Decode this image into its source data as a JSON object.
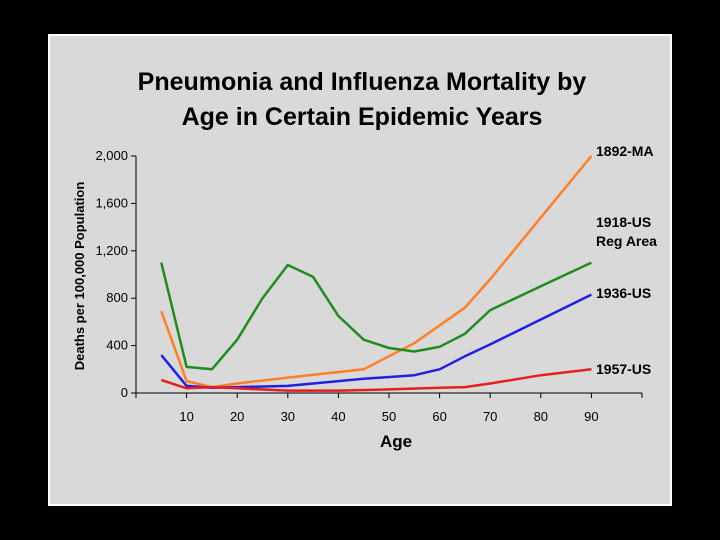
{
  "chart_data": {
    "type": "line",
    "title_lines": [
      "Pneumonia and Influenza Mortality by",
      "Age in Certain Epidemic Years"
    ],
    "xlabel": "Age",
    "ylabel": "Deaths per 100,000 Population",
    "xlim": [
      0,
      100
    ],
    "ylim": [
      0,
      2000
    ],
    "x_ticks": [
      10,
      20,
      30,
      40,
      50,
      60,
      70,
      80,
      90
    ],
    "y_ticks": [
      0,
      400,
      800,
      1200,
      1600,
      2000
    ],
    "y_tick_labels": [
      "0",
      "400",
      "800",
      "1,200",
      "1,600",
      "2,000"
    ],
    "grid": false,
    "legend": "labels beside line ends (right)",
    "series": [
      {
        "name_lines": [
          "1892-MA"
        ],
        "color": "#ff7f27",
        "x": [
          5,
          10,
          15,
          20,
          30,
          45,
          55,
          65,
          70,
          80,
          90
        ],
        "y": [
          690,
          100,
          50,
          80,
          130,
          200,
          420,
          720,
          960,
          1480,
          2000
        ]
      },
      {
        "name_lines": [
          "1918-US",
          "Reg Area"
        ],
        "color": "#1f8c1f",
        "x": [
          5,
          10,
          15,
          20,
          25,
          30,
          35,
          40,
          45,
          50,
          55,
          60,
          65,
          70,
          80,
          90
        ],
        "y": [
          1100,
          220,
          200,
          450,
          800,
          1080,
          980,
          650,
          450,
          380,
          350,
          390,
          500,
          700,
          900,
          1100
        ]
      },
      {
        "name_lines": [
          "1936-US"
        ],
        "color": "#1f1fe6",
        "x": [
          5,
          10,
          15,
          20,
          30,
          40,
          45,
          55,
          60,
          65,
          70,
          80,
          90
        ],
        "y": [
          320,
          60,
          45,
          50,
          60,
          100,
          120,
          150,
          200,
          310,
          410,
          620,
          830
        ]
      },
      {
        "name_lines": [
          "1957-US"
        ],
        "color": "#e61f1f",
        "x": [
          5,
          10,
          15,
          20,
          30,
          40,
          50,
          60,
          65,
          70,
          80,
          90
        ],
        "y": [
          110,
          40,
          50,
          40,
          20,
          20,
          30,
          45,
          50,
          80,
          150,
          200
        ]
      }
    ]
  }
}
